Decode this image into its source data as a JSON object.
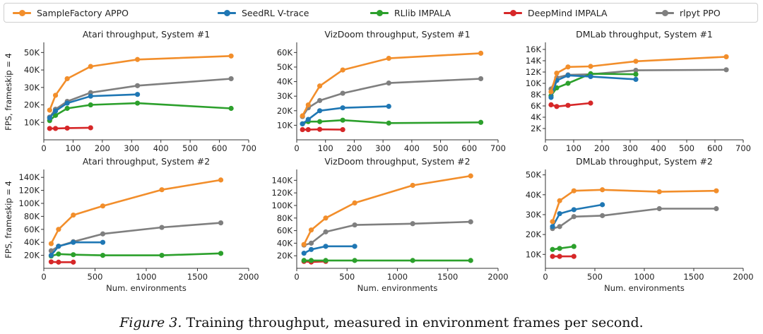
{
  "legend": [
    {
      "name": "SampleFactory APPO",
      "color": "#f28e2b"
    },
    {
      "name": "SeedRL V-trace",
      "color": "#1f77b4"
    },
    {
      "name": "RLlib IMPALA",
      "color": "#2ca02c"
    },
    {
      "name": "DeepMind IMPALA",
      "color": "#d62728"
    },
    {
      "name": "rlpyt PPO",
      "color": "#7f7f7f"
    }
  ],
  "caption": {
    "label": "Figure 3.",
    "text": "Training throughput, measured in environment frames per second."
  },
  "chart_data": [
    {
      "type": "line",
      "title": "Atari throughput, System #1",
      "ylabel": "FPS, frameskip = 4",
      "xlabel": "",
      "xlim": [
        0,
        700
      ],
      "ylim": [
        0,
        55000
      ],
      "xticks": [
        0,
        100,
        200,
        300,
        400,
        500,
        600,
        700
      ],
      "xtick_labels": [
        "0",
        "100",
        "200",
        "300",
        "400",
        "500",
        "600",
        "700"
      ],
      "yticks": [
        10000,
        20000,
        30000,
        40000,
        50000
      ],
      "ytick_labels": [
        "10K",
        "20K",
        "30K",
        "40K",
        "50K"
      ],
      "series": [
        {
          "name": "SampleFactory APPO",
          "x": [
            20,
            40,
            80,
            160,
            320,
            640
          ],
          "y": [
            17000,
            25500,
            35000,
            42000,
            46000,
            48000
          ]
        },
        {
          "name": "rlpyt PPO",
          "x": [
            20,
            40,
            80,
            160,
            320,
            640
          ],
          "y": [
            13000,
            17500,
            22000,
            27000,
            31000,
            35000
          ]
        },
        {
          "name": "SeedRL V-trace",
          "x": [
            20,
            40,
            80,
            160,
            320
          ],
          "y": [
            12500,
            16500,
            21000,
            25000,
            26000
          ]
        },
        {
          "name": "RLlib IMPALA",
          "x": [
            20,
            40,
            80,
            160,
            320,
            640
          ],
          "y": [
            11000,
            14000,
            18000,
            20000,
            21000,
            18000
          ]
        },
        {
          "name": "DeepMind IMPALA",
          "x": [
            20,
            40,
            80,
            160
          ],
          "y": [
            6500,
            6500,
            6700,
            6900
          ]
        }
      ]
    },
    {
      "type": "line",
      "title": "VizDoom throughput, System #1",
      "ylabel": "",
      "xlabel": "",
      "xlim": [
        0,
        700
      ],
      "ylim": [
        0,
        66000
      ],
      "xticks": [
        0,
        100,
        200,
        300,
        400,
        500,
        600,
        700
      ],
      "xtick_labels": [
        "0",
        "100",
        "200",
        "300",
        "400",
        "500",
        "600",
        "700"
      ],
      "yticks": [
        10000,
        20000,
        30000,
        40000,
        50000,
        60000
      ],
      "ytick_labels": [
        "10K",
        "20K",
        "30K",
        "40K",
        "50K",
        "60K"
      ],
      "series": [
        {
          "name": "SampleFactory APPO",
          "x": [
            20,
            40,
            80,
            160,
            320,
            640
          ],
          "y": [
            16500,
            24000,
            37000,
            48000,
            56000,
            59500
          ]
        },
        {
          "name": "rlpyt PPO",
          "x": [
            20,
            40,
            80,
            160,
            320,
            640
          ],
          "y": [
            16000,
            22000,
            27000,
            32000,
            39000,
            42000
          ]
        },
        {
          "name": "SeedRL V-trace",
          "x": [
            20,
            40,
            80,
            160,
            320
          ],
          "y": [
            11000,
            14000,
            20000,
            22000,
            23000
          ]
        },
        {
          "name": "RLlib IMPALA",
          "x": [
            20,
            40,
            80,
            160,
            320,
            640
          ],
          "y": [
            11000,
            12500,
            12500,
            13500,
            11500,
            12000
          ]
        },
        {
          "name": "DeepMind IMPALA",
          "x": [
            20,
            40,
            80,
            160
          ],
          "y": [
            7000,
            7000,
            7200,
            7000
          ]
        }
      ]
    },
    {
      "type": "line",
      "title": "DMLab throughput, System #1",
      "ylabel": "",
      "xlabel": "",
      "xlim": [
        0,
        700
      ],
      "ylim": [
        0,
        17000
      ],
      "xticks": [
        0,
        100,
        200,
        300,
        400,
        500,
        600,
        700
      ],
      "xtick_labels": [
        "0",
        "100",
        "200",
        "300",
        "400",
        "500",
        "600",
        "700"
      ],
      "yticks": [
        2000,
        4000,
        6000,
        8000,
        10000,
        12000,
        14000,
        16000
      ],
      "ytick_labels": [
        "2K",
        "4K",
        "6K",
        "8K",
        "10K",
        "12K",
        "14K",
        "16K"
      ],
      "series": [
        {
          "name": "SampleFactory APPO",
          "x": [
            20,
            40,
            80,
            160,
            320,
            640
          ],
          "y": [
            8500,
            11800,
            12900,
            13000,
            13900,
            14700
          ]
        },
        {
          "name": "rlpyt PPO",
          "x": [
            20,
            40,
            80,
            160,
            320,
            640
          ],
          "y": [
            9000,
            11000,
            11500,
            11600,
            12300,
            12400
          ]
        },
        {
          "name": "SeedRL V-trace",
          "x": [
            20,
            40,
            80,
            160,
            320
          ],
          "y": [
            7500,
            10500,
            11400,
            11200,
            10700
          ]
        },
        {
          "name": "RLlib IMPALA",
          "x": [
            20,
            40,
            80,
            160,
            320
          ],
          "y": [
            7800,
            9200,
            10000,
            11700,
            11600
          ]
        },
        {
          "name": "DeepMind IMPALA",
          "x": [
            20,
            40,
            80,
            160
          ],
          "y": [
            6200,
            5900,
            6100,
            6500
          ]
        }
      ]
    },
    {
      "type": "line",
      "title": "Atari throughput, System #2",
      "ylabel": "FPS, frameskip = 4",
      "xlabel": "Num. environments",
      "xlim": [
        0,
        2000
      ],
      "ylim": [
        0,
        150000
      ],
      "xticks": [
        0,
        500,
        1000,
        1500,
        2000
      ],
      "xtick_labels": [
        "0",
        "500",
        "1000",
        "1500",
        "2000"
      ],
      "yticks": [
        20000,
        40000,
        60000,
        80000,
        100000,
        120000,
        140000
      ],
      "ytick_labels": [
        "20K",
        "40K",
        "60K",
        "80K",
        "100K",
        "120K",
        "140K"
      ],
      "series": [
        {
          "name": "SampleFactory APPO",
          "x": [
            72,
            144,
            288,
            576,
            1152,
            1728
          ],
          "y": [
            38000,
            60000,
            82000,
            96000,
            121000,
            136000
          ]
        },
        {
          "name": "rlpyt PPO",
          "x": [
            72,
            144,
            288,
            576,
            1152,
            1728
          ],
          "y": [
            27000,
            34000,
            41000,
            53000,
            63000,
            70000
          ]
        },
        {
          "name": "SeedRL V-trace",
          "x": [
            72,
            144,
            288,
            576
          ],
          "y": [
            20000,
            34000,
            40000,
            40000
          ]
        },
        {
          "name": "RLlib IMPALA",
          "x": [
            72,
            144,
            288,
            576,
            1152,
            1728
          ],
          "y": [
            19000,
            22000,
            21000,
            20000,
            20000,
            23000
          ]
        },
        {
          "name": "DeepMind IMPALA",
          "x": [
            72,
            144,
            288
          ],
          "y": [
            10000,
            9500,
            9500
          ]
        }
      ]
    },
    {
      "type": "line",
      "title": "VizDoom throughput, System #2",
      "ylabel": "",
      "xlabel": "Num. environments",
      "xlim": [
        0,
        2000
      ],
      "ylim": [
        0,
        155000
      ],
      "xticks": [
        0,
        500,
        1000,
        1500,
        2000
      ],
      "xtick_labels": [
        "0",
        "500",
        "1000",
        "1500",
        "2000"
      ],
      "yticks": [
        20000,
        40000,
        60000,
        80000,
        100000,
        120000,
        140000
      ],
      "ytick_labels": [
        "20K",
        "40K",
        "60K",
        "80K",
        "100K",
        "120K",
        "140K"
      ],
      "series": [
        {
          "name": "SampleFactory APPO",
          "x": [
            72,
            144,
            288,
            576,
            1152,
            1728
          ],
          "y": [
            38000,
            61000,
            80000,
            104000,
            132000,
            147000
          ]
        },
        {
          "name": "rlpyt PPO",
          "x": [
            72,
            144,
            288,
            576,
            1152,
            1728
          ],
          "y": [
            37000,
            40000,
            58000,
            69000,
            71000,
            74000
          ]
        },
        {
          "name": "SeedRL V-trace",
          "x": [
            72,
            144,
            288,
            576
          ],
          "y": [
            24000,
            30000,
            35000,
            35000
          ]
        },
        {
          "name": "RLlib IMPALA",
          "x": [
            72,
            144,
            288,
            576,
            1152,
            1728
          ],
          "y": [
            12500,
            12500,
            12500,
            12500,
            12500,
            12500
          ]
        },
        {
          "name": "DeepMind IMPALA",
          "x": [
            72,
            144,
            288
          ],
          "y": [
            11000,
            10000,
            11000
          ]
        }
      ]
    },
    {
      "type": "line",
      "title": "DMLab throughput, System #2",
      "ylabel": "",
      "xlabel": "Num. environments",
      "xlim": [
        0,
        2000
      ],
      "ylim": [
        3000,
        52000
      ],
      "xticks": [
        0,
        500,
        1000,
        1500,
        2000
      ],
      "xtick_labels": [
        "0",
        "500",
        "1000",
        "1500",
        "2000"
      ],
      "yticks": [
        10000,
        20000,
        30000,
        40000,
        50000
      ],
      "ytick_labels": [
        "10K",
        "20K",
        "30K",
        "40K",
        "50K"
      ],
      "series": [
        {
          "name": "SampleFactory APPO",
          "x": [
            72,
            144,
            288,
            576,
            1152,
            1728
          ],
          "y": [
            26500,
            37000,
            42000,
            42500,
            41500,
            42000
          ]
        },
        {
          "name": "rlpyt PPO",
          "x": [
            72,
            144,
            288,
            576,
            1152,
            1728
          ],
          "y": [
            23000,
            24000,
            29000,
            29500,
            33000,
            33000
          ]
        },
        {
          "name": "SeedRL V-trace",
          "x": [
            72,
            144,
            288,
            576
          ],
          "y": [
            24000,
            30500,
            32500,
            35000
          ]
        },
        {
          "name": "RLlib IMPALA",
          "x": [
            72,
            144,
            288
          ],
          "y": [
            12500,
            13000,
            14000
          ]
        },
        {
          "name": "DeepMind IMPALA",
          "x": [
            72,
            144,
            288
          ],
          "y": [
            9000,
            9000,
            9000
          ]
        }
      ]
    }
  ]
}
